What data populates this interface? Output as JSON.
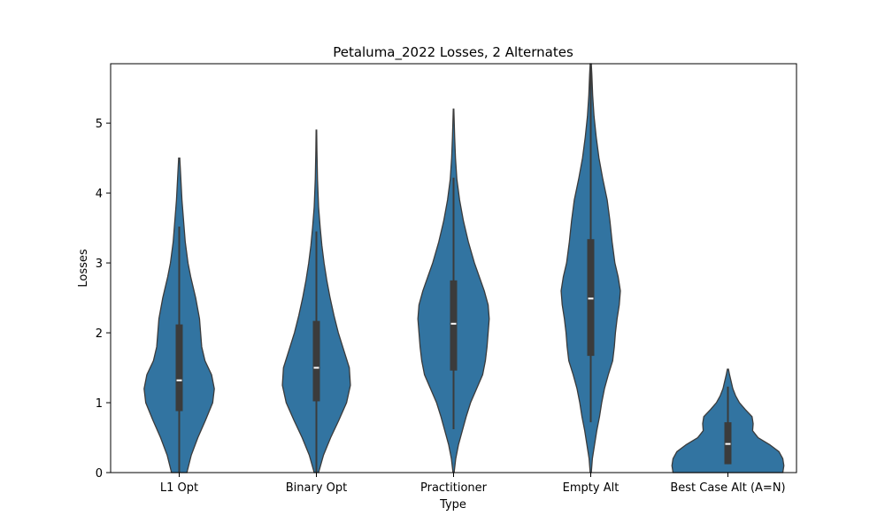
{
  "chart_data": {
    "type": "violin",
    "title": "Petaluma_2022 Losses, 2 Alternates",
    "xlabel": "Type",
    "ylabel": "Losses",
    "ylim": [
      0,
      5.85
    ],
    "yticks": [
      0,
      1,
      2,
      3,
      4,
      5
    ],
    "grid": false,
    "colors": {
      "violin": "#3274a1",
      "violin_edge": "#3b3b3b",
      "box": "#3b3b3b",
      "median": "#ffffff"
    },
    "categories": [
      "L1 Opt",
      "Binary Opt",
      "Practitioner",
      "Empty Alt",
      "Best Case Alt (A=N)"
    ],
    "violins": [
      {
        "category": "L1 Opt",
        "min": 0,
        "q1": 0.88,
        "median": 1.32,
        "q3": 2.12,
        "whisker_low": 0,
        "whisker_high": 3.52,
        "profile": [
          [
            0,
            0.14
          ],
          [
            0.25,
            0.22
          ],
          [
            0.5,
            0.34
          ],
          [
            0.75,
            0.48
          ],
          [
            1.0,
            0.61
          ],
          [
            1.2,
            0.64
          ],
          [
            1.4,
            0.59
          ],
          [
            1.6,
            0.47
          ],
          [
            1.8,
            0.41
          ],
          [
            2.0,
            0.39
          ],
          [
            2.2,
            0.37
          ],
          [
            2.5,
            0.3
          ],
          [
            2.8,
            0.21
          ],
          [
            3.0,
            0.16
          ],
          [
            3.3,
            0.11
          ],
          [
            3.6,
            0.08
          ],
          [
            3.9,
            0.05
          ],
          [
            4.2,
            0.03
          ],
          [
            4.5,
            0.01
          ]
        ]
      },
      {
        "category": "Binary Opt",
        "min": 0,
        "q1": 1.02,
        "median": 1.5,
        "q3": 2.17,
        "whisker_low": 0,
        "whisker_high": 3.45,
        "profile": [
          [
            0,
            0.04
          ],
          [
            0.25,
            0.13
          ],
          [
            0.5,
            0.26
          ],
          [
            0.75,
            0.41
          ],
          [
            1.0,
            0.55
          ],
          [
            1.25,
            0.62
          ],
          [
            1.5,
            0.6
          ],
          [
            1.75,
            0.5
          ],
          [
            2.0,
            0.4
          ],
          [
            2.25,
            0.32
          ],
          [
            2.5,
            0.25
          ],
          [
            2.75,
            0.19
          ],
          [
            3.0,
            0.14
          ],
          [
            3.25,
            0.1
          ],
          [
            3.5,
            0.07
          ],
          [
            3.8,
            0.04
          ],
          [
            4.2,
            0.02
          ],
          [
            4.6,
            0.01
          ],
          [
            4.9,
            0.005
          ]
        ]
      },
      {
        "category": "Practitioner",
        "min": 0,
        "q1": 1.46,
        "median": 2.13,
        "q3": 2.75,
        "whisker_low": 0.62,
        "whisker_high": 4.22,
        "profile": [
          [
            0,
            0.01
          ],
          [
            0.2,
            0.04
          ],
          [
            0.4,
            0.09
          ],
          [
            0.6,
            0.16
          ],
          [
            0.8,
            0.23
          ],
          [
            1.0,
            0.31
          ],
          [
            1.2,
            0.42
          ],
          [
            1.4,
            0.53
          ],
          [
            1.6,
            0.58
          ],
          [
            1.8,
            0.61
          ],
          [
            2.0,
            0.63
          ],
          [
            2.2,
            0.65
          ],
          [
            2.4,
            0.63
          ],
          [
            2.6,
            0.56
          ],
          [
            2.8,
            0.47
          ],
          [
            3.0,
            0.38
          ],
          [
            3.3,
            0.27
          ],
          [
            3.6,
            0.18
          ],
          [
            3.9,
            0.11
          ],
          [
            4.2,
            0.06
          ],
          [
            4.5,
            0.035
          ],
          [
            4.8,
            0.02
          ],
          [
            5.2,
            0.005
          ]
        ]
      },
      {
        "category": "Empty Alt",
        "min": 0,
        "q1": 1.67,
        "median": 2.49,
        "q3": 3.34,
        "whisker_low": 0.72,
        "whisker_high": 5.85,
        "profile": [
          [
            0,
            0.01
          ],
          [
            0.2,
            0.03
          ],
          [
            0.4,
            0.07
          ],
          [
            0.6,
            0.11
          ],
          [
            0.8,
            0.16
          ],
          [
            1.0,
            0.2
          ],
          [
            1.2,
            0.25
          ],
          [
            1.4,
            0.32
          ],
          [
            1.6,
            0.4
          ],
          [
            1.8,
            0.43
          ],
          [
            2.0,
            0.45
          ],
          [
            2.2,
            0.48
          ],
          [
            2.4,
            0.52
          ],
          [
            2.6,
            0.54
          ],
          [
            2.8,
            0.5
          ],
          [
            3.0,
            0.44
          ],
          [
            3.3,
            0.39
          ],
          [
            3.6,
            0.35
          ],
          [
            3.9,
            0.3
          ],
          [
            4.2,
            0.22
          ],
          [
            4.5,
            0.15
          ],
          [
            4.8,
            0.1
          ],
          [
            5.1,
            0.06
          ],
          [
            5.4,
            0.035
          ],
          [
            5.7,
            0.02
          ],
          [
            5.85,
            0.01
          ]
        ]
      },
      {
        "category": "Best Case Alt (A=N)",
        "min": 0,
        "q1": 0.12,
        "median": 0.41,
        "q3": 0.72,
        "whisker_low": 0.12,
        "whisker_high": 1.23,
        "profile": [
          [
            0,
            1.0
          ],
          [
            0.1,
            1.02
          ],
          [
            0.2,
            1.0
          ],
          [
            0.3,
            0.93
          ],
          [
            0.4,
            0.76
          ],
          [
            0.5,
            0.55
          ],
          [
            0.6,
            0.45
          ],
          [
            0.7,
            0.46
          ],
          [
            0.8,
            0.44
          ],
          [
            0.9,
            0.32
          ],
          [
            1.0,
            0.21
          ],
          [
            1.1,
            0.14
          ],
          [
            1.2,
            0.09
          ],
          [
            1.3,
            0.06
          ],
          [
            1.4,
            0.03
          ],
          [
            1.48,
            0.01
          ]
        ]
      }
    ]
  }
}
